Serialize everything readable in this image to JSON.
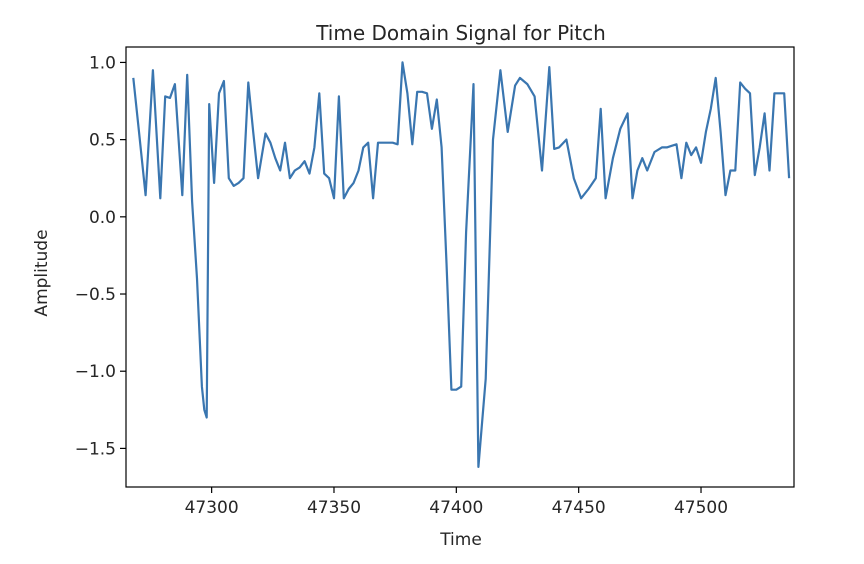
{
  "chart_data": {
    "type": "line",
    "title": "Time Domain Signal for Pitch",
    "xlabel": "Time",
    "ylabel": "Amplitude",
    "xlim": [
      47265,
      47538
    ],
    "ylim": [
      -1.75,
      1.1
    ],
    "xticks": [
      47300,
      47350,
      47400,
      47450,
      47500
    ],
    "yticks": [
      -1.5,
      -1.0,
      -0.5,
      0.0,
      0.5,
      1.0
    ],
    "xtick_labels": [
      "47300",
      "47350",
      "47400",
      "47450",
      "47500"
    ],
    "ytick_labels": [
      "−1.5",
      "−1.0",
      "−0.5",
      "0.0",
      "0.5",
      "1.0"
    ],
    "grid": false,
    "series": [
      {
        "color": "#3a76b0",
        "x": [
          47268,
          47270,
          47273,
          47276,
          47279,
          47281,
          47283,
          47285,
          47288,
          47290,
          47292,
          47294,
          47296,
          47297,
          47298,
          47299,
          47301,
          47303,
          47305,
          47307,
          47309,
          47311,
          47313,
          47315,
          47317,
          47319,
          47322,
          47324,
          47326,
          47328,
          47330,
          47332,
          47334,
          47336,
          47338,
          47340,
          47342,
          47344,
          47346,
          47348,
          47350,
          47352,
          47354,
          47356,
          47358,
          47360,
          47362,
          47364,
          47366,
          47368,
          47370,
          47372,
          47374,
          47376,
          47378,
          47380,
          47382,
          47384,
          47386,
          47388,
          47390,
          47392,
          47394,
          47396,
          47398,
          47400,
          47402,
          47404,
          47407,
          47409,
          47412,
          47415,
          47418,
          47421,
          47424,
          47426,
          47429,
          47432,
          47435,
          47438,
          47440,
          47442,
          47445,
          47448,
          47451,
          47454,
          47457,
          47459,
          47461,
          47464,
          47467,
          47470,
          47472,
          47474,
          47476,
          47478,
          47481,
          47484,
          47486,
          47488,
          47490,
          47492,
          47494,
          47496,
          47498,
          47500,
          47502,
          47504,
          47506,
          47508,
          47510,
          47512,
          47514,
          47516,
          47518,
          47520,
          47522,
          47524,
          47526,
          47528,
          47530,
          47532,
          47534,
          47536
        ],
        "values": [
          0.9,
          0.6,
          0.14,
          0.95,
          0.12,
          0.78,
          0.77,
          0.86,
          0.14,
          0.92,
          0.1,
          -0.4,
          -1.1,
          -1.25,
          -1.3,
          0.73,
          0.22,
          0.8,
          0.88,
          0.25,
          0.2,
          0.22,
          0.25,
          0.87,
          0.55,
          0.25,
          0.54,
          0.48,
          0.38,
          0.3,
          0.48,
          0.25,
          0.3,
          0.32,
          0.36,
          0.28,
          0.45,
          0.8,
          0.28,
          0.25,
          0.12,
          0.78,
          0.12,
          0.18,
          0.22,
          0.3,
          0.45,
          0.48,
          0.12,
          0.48,
          0.48,
          0.48,
          0.48,
          0.47,
          1.0,
          0.8,
          0.47,
          0.81,
          0.81,
          0.8,
          0.57,
          0.76,
          0.45,
          -0.3,
          -1.12,
          -1.12,
          -1.1,
          -0.1,
          0.86,
          -1.62,
          -1.05,
          0.5,
          0.95,
          0.55,
          0.85,
          0.9,
          0.86,
          0.78,
          0.3,
          0.97,
          0.44,
          0.45,
          0.5,
          0.25,
          0.12,
          0.18,
          0.25,
          0.7,
          0.12,
          0.38,
          0.57,
          0.67,
          0.12,
          0.3,
          0.38,
          0.3,
          0.42,
          0.45,
          0.45,
          0.46,
          0.47,
          0.25,
          0.48,
          0.4,
          0.45,
          0.35,
          0.55,
          0.7,
          0.9,
          0.55,
          0.14,
          0.3,
          0.3,
          0.87,
          0.83,
          0.8,
          0.27,
          0.45,
          0.67,
          0.3,
          0.8,
          0.8,
          0.8,
          0.25
        ]
      }
    ]
  }
}
